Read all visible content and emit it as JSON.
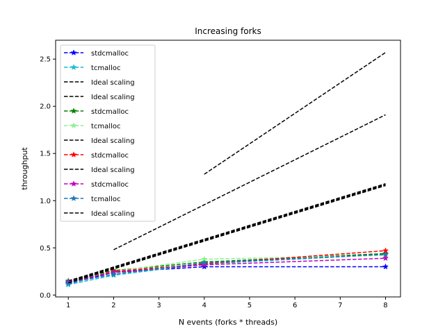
{
  "chart_data": {
    "type": "line",
    "title": "Increasing forks",
    "xlabel": "N events (forks * threads)",
    "ylabel": "throughput",
    "xlim": [
      0.72,
      8.33
    ],
    "ylim": [
      -0.02,
      2.7
    ],
    "xticks": [
      1,
      2,
      3,
      4,
      5,
      6,
      7,
      8
    ],
    "yticks": [
      0.0,
      0.5,
      1.0,
      1.5,
      2.0,
      2.5
    ],
    "ytick_labels": [
      "0.0",
      "0.5",
      "1.0",
      "1.5",
      "2.0",
      "2.5"
    ],
    "grid": false,
    "legend_position": "top-left",
    "series": [
      {
        "name": "stdcmalloc",
        "color": "#0000ff",
        "marker": "star",
        "x": [
          1,
          2,
          4,
          8
        ],
        "y": [
          0.12,
          0.24,
          0.3,
          0.3
        ]
      },
      {
        "name": "tcmalloc",
        "color": "#17becf",
        "marker": "star",
        "x": [
          1,
          2,
          4,
          8
        ],
        "y": [
          0.11,
          0.21,
          0.33,
          0.43
        ]
      },
      {
        "name": "Ideal scaling",
        "color": "#000000",
        "marker": "none",
        "x": [
          4,
          8
        ],
        "y": [
          1.28,
          2.57
        ]
      },
      {
        "name": "Ideal scaling",
        "color": "#000000",
        "marker": "none",
        "x": [
          2,
          8
        ],
        "y": [
          0.48,
          1.91
        ]
      },
      {
        "name": "stdcmalloc",
        "color": "#008000",
        "marker": "star",
        "x": [
          1,
          2,
          4,
          8
        ],
        "y": [
          0.15,
          0.26,
          0.35,
          0.44
        ]
      },
      {
        "name": "tcmalloc",
        "color": "#90ee90",
        "marker": "star",
        "x": [
          1,
          2,
          4,
          8
        ],
        "y": [
          0.14,
          0.25,
          0.38,
          0.42
        ]
      },
      {
        "name": "Ideal scaling",
        "color": "#000000",
        "marker": "none",
        "x": [
          1,
          8
        ],
        "y": [
          0.15,
          1.18
        ]
      },
      {
        "name": "stdcmalloc",
        "color": "#ff0000",
        "marker": "star",
        "x": [
          1,
          2,
          4,
          8
        ],
        "y": [
          0.13,
          0.25,
          0.33,
          0.47
        ]
      },
      {
        "name": "Ideal scaling",
        "color": "#000000",
        "marker": "none",
        "x": [
          1,
          8
        ],
        "y": [
          0.14,
          1.17
        ]
      },
      {
        "name": "stdcmalloc",
        "color": "#bf00bf",
        "marker": "star",
        "x": [
          1,
          2,
          4,
          8
        ],
        "y": [
          0.14,
          0.24,
          0.32,
          0.39
        ]
      },
      {
        "name": "tcmalloc",
        "color": "#1f77b4",
        "marker": "star",
        "x": [
          1,
          2,
          4,
          8
        ],
        "y": [
          0.13,
          0.22,
          0.34,
          0.43
        ]
      },
      {
        "name": "Ideal scaling",
        "color": "#000000",
        "marker": "none",
        "x": [
          1,
          8
        ],
        "y": [
          0.13,
          1.16
        ]
      }
    ]
  }
}
